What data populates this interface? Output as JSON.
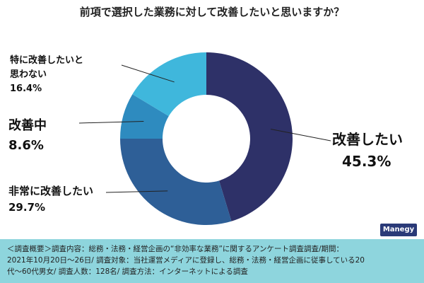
{
  "title": "前項で選択した業務に対して改善したいと思いますか？",
  "chart_data": {
    "type": "pie",
    "donut": true,
    "categories": [
      "改善したい",
      "非常に改善したい",
      "改善中",
      "特に改善したいと思わない"
    ],
    "values": [
      45.3,
      29.7,
      8.6,
      16.4
    ],
    "colors": [
      "#2e3168",
      "#2e5f97",
      "#2e8bbf",
      "#3fb7dc"
    ],
    "label_texts": [
      {
        "name": "改善したい",
        "value": "45.3%"
      },
      {
        "name": "非常に改善したい",
        "value": "29.7%"
      },
      {
        "name": "改善中",
        "value": "8.6%"
      },
      {
        "name": "特に改善したいと思わない",
        "name_lines": [
          "特に改善したいと",
          "思わない"
        ],
        "value": "16.4%"
      }
    ]
  },
  "logo": {
    "text": "Manegy"
  },
  "footer": {
    "lines": [
      "＜調査概要＞調査内容：総務・法務・経営企画の“非効率な業務”に関するアンケート調査調査/期間：",
      "2021年10月20日〜26日/ 調査対象：当社運営メディアに登録し、総務・法務・経営企画に従事している20",
      "代〜60代男女/ 調査人数：128名/ 調査方法：インターネットによる調査"
    ]
  }
}
